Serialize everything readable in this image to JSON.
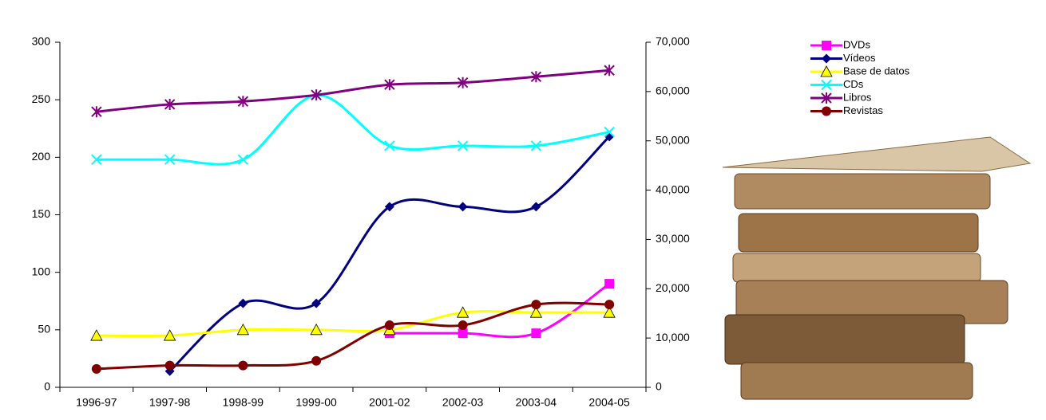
{
  "chart_data": {
    "type": "line",
    "categories": [
      "1996-97",
      "1997-98",
      "1998-99",
      "1999-00",
      "2001-02",
      "2002-03",
      "2003-04",
      "2004-05"
    ],
    "series": [
      {
        "name": "DVDs",
        "color": "#ff00ff",
        "marker": "square",
        "values": [
          null,
          null,
          null,
          null,
          47,
          47,
          47,
          90
        ]
      },
      {
        "name": "Vídeos",
        "color": "#000080",
        "marker": "diamond",
        "values": [
          null,
          14,
          73,
          73,
          157,
          157,
          157,
          218
        ]
      },
      {
        "name": "Base de datos",
        "color": "#ffff00",
        "marker": "triangle",
        "values": [
          45,
          45,
          50,
          50,
          50,
          65,
          65,
          65
        ]
      },
      {
        "name": "CDs",
        "color": "#00ffff",
        "marker": "x",
        "values": [
          198,
          198,
          198,
          254,
          210,
          210,
          210,
          222
        ]
      },
      {
        "name": "Libros",
        "color": "#800080",
        "marker": "star",
        "axis": "y2",
        "values": [
          55900,
          57400,
          58000,
          59300,
          61400,
          61800,
          63000,
          64300
        ]
      },
      {
        "name": "Revistas",
        "color": "#800000",
        "marker": "circle",
        "values": [
          16,
          19,
          19,
          23,
          54,
          54,
          72,
          72
        ]
      }
    ],
    "ylim": [
      0,
      300
    ],
    "yticks": [
      0,
      50,
      100,
      150,
      200,
      250,
      300
    ],
    "y2lim": [
      0,
      70000
    ],
    "y2ticks": [
      0,
      {
        "value": 10000,
        "label": "10,000"
      },
      {
        "value": 20000,
        "label": "20,000"
      },
      {
        "value": 30000,
        "label": "30,000"
      },
      {
        "value": 40000,
        "label": "40,000"
      },
      {
        "value": 50000,
        "label": "50,000"
      },
      {
        "value": 60000,
        "label": "60,000"
      },
      {
        "value": 70000,
        "label": "70,000"
      }
    ],
    "legend": "top-right"
  }
}
